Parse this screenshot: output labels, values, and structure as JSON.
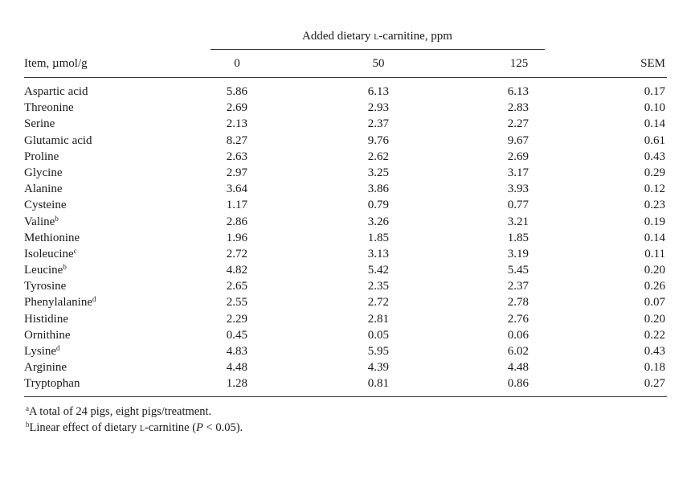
{
  "spanner": {
    "prefix": "Added dietary ",
    "smallcaps": "L",
    "suffix": "-carnitine, ppm"
  },
  "headers": {
    "item": "Item, µmol/g",
    "c0": "0",
    "c50": "50",
    "c125": "125",
    "sem": "SEM"
  },
  "rows": [
    {
      "item": "Aspartic acid",
      "sup": "",
      "v0": "5.86",
      "v50": "6.13",
      "v125": "6.13",
      "sem": "0.17"
    },
    {
      "item": "Threonine",
      "sup": "",
      "v0": "2.69",
      "v50": "2.93",
      "v125": "2.83",
      "sem": "0.10"
    },
    {
      "item": "Serine",
      "sup": "",
      "v0": "2.13",
      "v50": "2.37",
      "v125": "2.27",
      "sem": "0.14"
    },
    {
      "item": "Glutamic acid",
      "sup": "",
      "v0": "8.27",
      "v50": "9.76",
      "v125": "9.67",
      "sem": "0.61"
    },
    {
      "item": "Proline",
      "sup": "",
      "v0": "2.63",
      "v50": "2.62",
      "v125": "2.69",
      "sem": "0.43"
    },
    {
      "item": "Glycine",
      "sup": "",
      "v0": "2.97",
      "v50": "3.25",
      "v125": "3.17",
      "sem": "0.29"
    },
    {
      "item": "Alanine",
      "sup": "",
      "v0": "3.64",
      "v50": "3.86",
      "v125": "3.93",
      "sem": "0.12"
    },
    {
      "item": "Cysteine",
      "sup": "",
      "v0": "1.17",
      "v50": "0.79",
      "v125": "0.77",
      "sem": "0.23"
    },
    {
      "item": "Valine",
      "sup": "b",
      "v0": "2.86",
      "v50": "3.26",
      "v125": "3.21",
      "sem": "0.19"
    },
    {
      "item": "Methionine",
      "sup": "",
      "v0": "1.96",
      "v50": "1.85",
      "v125": "1.85",
      "sem": "0.14"
    },
    {
      "item": "Isoleucine",
      "sup": "c",
      "v0": "2.72",
      "v50": "3.13",
      "v125": "3.19",
      "sem": "0.11"
    },
    {
      "item": "Leucine",
      "sup": "b",
      "v0": "4.82",
      "v50": "5.42",
      "v125": "5.45",
      "sem": "0.20"
    },
    {
      "item": "Tyrosine",
      "sup": "",
      "v0": "2.65",
      "v50": "2.35",
      "v125": "2.37",
      "sem": "0.26"
    },
    {
      "item": "Phenylalanine",
      "sup": "d",
      "v0": "2.55",
      "v50": "2.72",
      "v125": "2.78",
      "sem": "0.07"
    },
    {
      "item": "Histidine",
      "sup": "",
      "v0": "2.29",
      "v50": "2.81",
      "v125": "2.76",
      "sem": "0.20"
    },
    {
      "item": "Ornithine",
      "sup": "",
      "v0": "0.45",
      "v50": "0.05",
      "v125": "0.06",
      "sem": "0.22"
    },
    {
      "item": "Lysine",
      "sup": "d",
      "v0": "4.83",
      "v50": "5.95",
      "v125": "6.02",
      "sem": "0.43"
    },
    {
      "item": "Arginine",
      "sup": "",
      "v0": "4.48",
      "v50": "4.39",
      "v125": "4.48",
      "sem": "0.18"
    },
    {
      "item": "Tryptophan",
      "sup": "",
      "v0": "1.28",
      "v50": "0.81",
      "v125": "0.86",
      "sem": "0.27"
    }
  ],
  "footnotes": {
    "a_mark": "a",
    "a_text": "A total of 24 pigs, eight pigs/treatment.",
    "b_mark": "b",
    "b_pre": "Linear effect of dietary ",
    "b_sc": "L",
    "b_mid": "-carnitine (",
    "b_p": "P",
    "b_post": " < 0.05)."
  }
}
